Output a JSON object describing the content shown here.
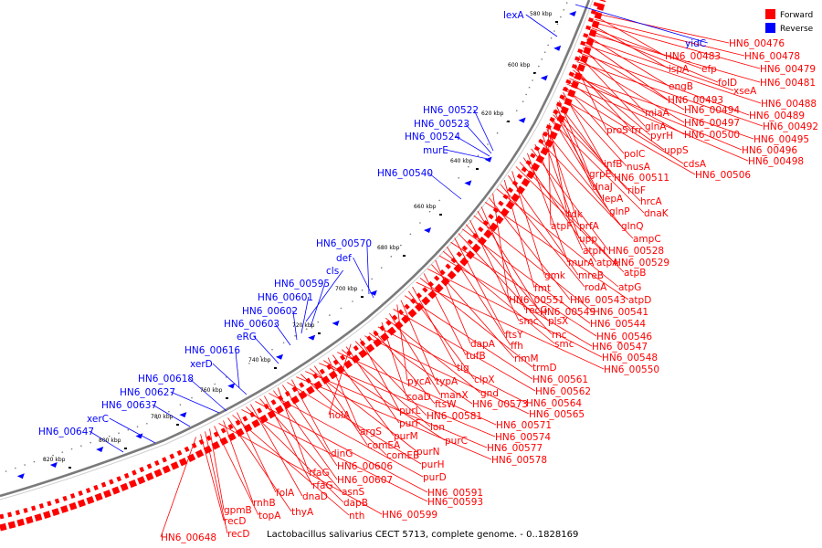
{
  "caption": "Lactobacillus salivarius CECT 5713, complete genome. - 0..1828169",
  "legend": [
    {
      "label": "Forward",
      "color": "#ff0000"
    },
    {
      "label": "Reverse",
      "color": "#0000ff"
    }
  ],
  "colors": {
    "forward": "#ff0000",
    "reverse": "#0000ff",
    "backbone": "#888888"
  },
  "ticks": [
    "580 kbp",
    "600 kbp",
    "620 kbp",
    "640 kbp",
    "660 kbp",
    "680 kbp",
    "700 kbp",
    "720 kbp",
    "740 kbp",
    "760 kbp",
    "780 kbp",
    "800 kbp",
    "820 kbp"
  ],
  "reverse_genes": [
    "lexA",
    "yidC",
    "HN6_00522",
    "HN6_00523",
    "HN6_00524",
    "murE",
    "HN6_00540",
    "HN6_00570",
    "def",
    "cls",
    "HN6_00595",
    "HN6_00601",
    "HN6_00602",
    "HN6_00603",
    "eRG",
    "HN6_00616",
    "xerD",
    "HN6_00618",
    "HN6_00627",
    "HN6_00637",
    "xerC",
    "HN6_00647"
  ],
  "forward_genes": [
    "HN6_00476",
    "HN6_00483",
    "HN6_00478",
    "HN6_00479",
    "ispA",
    "efp",
    "folD",
    "HN6_00481",
    "engB",
    "xseA",
    "HN6_00493",
    "HN6_00488",
    "miaA",
    "HN6_00494",
    "HN6_00489",
    "glnA",
    "HN6_00497",
    "HN6_00492",
    "proS",
    "frr",
    "pyrH",
    "HN6_00500",
    "HN6_00495",
    "HN6_00496",
    "uppS",
    "HN6_00498",
    "polC",
    "cdsA",
    "infB",
    "nusA",
    "HN6_00506",
    "grpE",
    "HN6_00511",
    "dnaJ",
    "ribF",
    "lepA",
    "hrcA",
    "glnP",
    "dnaK",
    "tdk",
    "atpF",
    "prfA",
    "glnQ",
    "upp",
    "ampC",
    "atpH",
    "HN6_00528",
    "murA",
    "atpA",
    "HN6_00529",
    "atpB",
    "gmk",
    "mreB",
    "fmt",
    "rodA",
    "atpG",
    "HN6_00551",
    "HN6_00543",
    "atpD",
    "recG",
    "HN6_00549",
    "HN6_00541",
    "smc",
    "plsX",
    "HN6_00544",
    "rnc",
    "ftsY",
    "HN6_00546",
    "ffh",
    "smc",
    "HN6_00547",
    "dapA",
    "rimM",
    "HN6_00548",
    "tufB",
    "trmD",
    "HN6_00550",
    "tig",
    "clpX",
    "HN6_00561",
    "typA",
    "pycA",
    "HN6_00562",
    "manX",
    "gnd",
    "coaD",
    "HN6_00564",
    "ftsW",
    "HN6_00573",
    "HN6_00565",
    "purL",
    "HN6_00581",
    "holA",
    "purF",
    "lon",
    "HN6_00571",
    "purM",
    "argS",
    "purC",
    "HN6_00574",
    "comEA",
    "purN",
    "HN6_00577",
    "comEB",
    "HN6_00578",
    "dinG",
    "purH",
    "HN6_00606",
    "rfaG",
    "HN6_00607",
    "purD",
    "rfaG",
    "asnS",
    "HN6_00591",
    "dnaD",
    "dapB",
    "HN6_00593",
    "folA",
    "nth",
    "thyA",
    "rnhB",
    "HN6_00599",
    "topA",
    "gpmB",
    "recD",
    "recD",
    "HN6_00648"
  ]
}
